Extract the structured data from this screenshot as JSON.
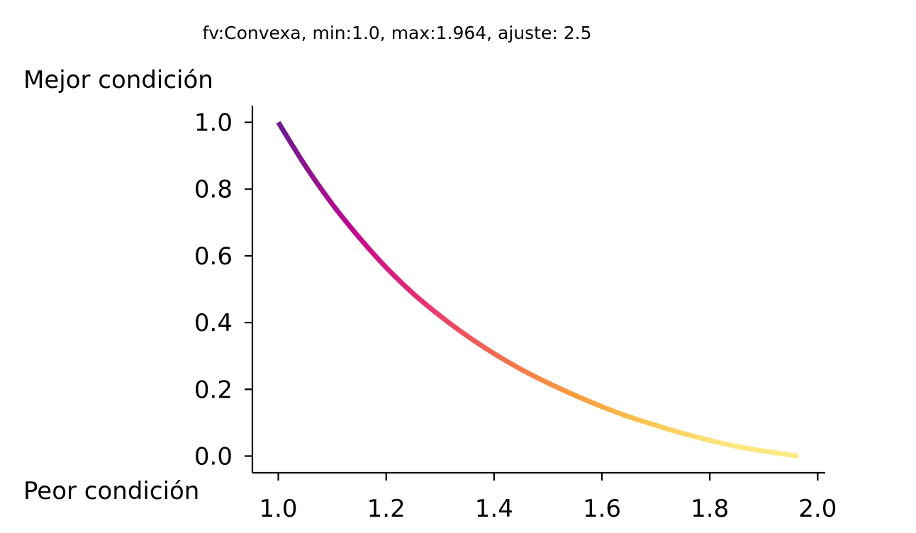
{
  "chart_data": {
    "type": "line",
    "title": "fv:Convexa, min:1.0, max:1.964, ajuste: 2.5",
    "top_label": "Mejor condición",
    "bottom_label": "Peor condición",
    "xlim": [
      0.952,
      2.014
    ],
    "ylim": [
      -0.05,
      1.05
    ],
    "x_ticks": [
      1.0,
      1.2,
      1.4,
      1.6,
      1.8,
      2.0
    ],
    "x_tick_labels": [
      "1.0",
      "1.2",
      "1.4",
      "1.6",
      "1.8",
      "2.0"
    ],
    "y_ticks": [
      0.0,
      0.2,
      0.4,
      0.6,
      0.8,
      1.0
    ],
    "y_tick_labels": [
      "0.0",
      "0.2",
      "0.4",
      "0.6",
      "0.8",
      "1.0"
    ],
    "grid": false,
    "colormap": [
      "#6a1b8f",
      "#c2088f",
      "#e8346f",
      "#f2704f",
      "#f79d3d",
      "#fcc755",
      "#fde680",
      "#fdec85"
    ],
    "x": [
      1.0,
      1.05,
      1.1,
      1.15,
      1.2,
      1.25,
      1.3,
      1.35,
      1.4,
      1.45,
      1.5,
      1.55,
      1.6,
      1.65,
      1.7,
      1.75,
      1.8,
      1.85,
      1.9,
      1.964
    ],
    "y": [
      1.0,
      0.87,
      0.755,
      0.655,
      0.565,
      0.487,
      0.42,
      0.36,
      0.307,
      0.26,
      0.219,
      0.182,
      0.148,
      0.118,
      0.092,
      0.068,
      0.047,
      0.029,
      0.015,
      0.0
    ]
  }
}
